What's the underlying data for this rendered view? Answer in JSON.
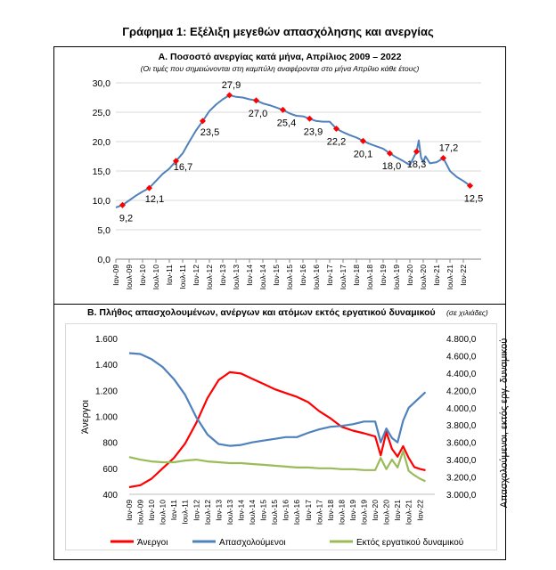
{
  "title": "Γράφημα 1: Εξέλιξη μεγεθών απασχόλησης και ανεργίας",
  "chart_data": [
    {
      "type": "line",
      "title": "Α. Ποσοστό ανεργίας κατά μήνα, Απρίλιος 2009 – 2022",
      "subtitle": "(Οι τιμές που σημειώνονται στη καμπύλη αναφέρονται στο μήνα Απρίλιο κάθε έτους)",
      "ylim": [
        0,
        30
      ],
      "yticks": [
        "0,0",
        "5,0",
        "10,0",
        "15,0",
        "20,0",
        "25,0",
        "30,0"
      ],
      "grid": true,
      "x_labels": [
        "Ιαν-09",
        "Ιουλ-09",
        "Ιαν-10",
        "Ιουλ-10",
        "Ιαν-11",
        "Ιουλ-11",
        "Ιαν-12",
        "Ιουλ-12",
        "Ιαν-13",
        "Ιουλ-13",
        "Ιαν-14",
        "Ιουλ-14",
        "Ιαν-15",
        "Ιουλ-15",
        "Ιαν-16",
        "Ιουλ-16",
        "Ιαν-17",
        "Ιουλ-17",
        "Ιαν-18",
        "Ιουλ-18",
        "Ιαν-19",
        "Ιουλ-19",
        "Ιαν-20",
        "Ιουλ-20",
        "Ιαν-21",
        "Ιουλ-21",
        "Ιαν-22"
      ],
      "series": [
        {
          "name": "",
          "color": "#4f81bd",
          "x": [
            "2009-01",
            "2009-04",
            "2009-07",
            "2009-10",
            "2010-01",
            "2010-04",
            "2010-07",
            "2010-10",
            "2011-01",
            "2011-04",
            "2011-07",
            "2011-10",
            "2012-01",
            "2012-04",
            "2012-07",
            "2012-10",
            "2013-01",
            "2013-04",
            "2013-07",
            "2013-10",
            "2014-01",
            "2014-04",
            "2014-07",
            "2014-10",
            "2015-01",
            "2015-04",
            "2015-07",
            "2015-10",
            "2016-01",
            "2016-04",
            "2016-07",
            "2016-10",
            "2017-01",
            "2017-04",
            "2017-07",
            "2017-10",
            "2018-01",
            "2018-04",
            "2018-07",
            "2018-10",
            "2019-01",
            "2019-04",
            "2019-07",
            "2019-10",
            "2020-01",
            "2020-04",
            "2020-05",
            "2020-06",
            "2020-07",
            "2020-08",
            "2020-10",
            "2021-01",
            "2021-04",
            "2021-07",
            "2021-10",
            "2022-01",
            "2022-04"
          ],
          "values": [
            8.8,
            9.2,
            10.0,
            10.8,
            11.5,
            12.1,
            13.3,
            14.5,
            15.4,
            16.7,
            18.0,
            20.0,
            21.9,
            23.5,
            25.2,
            26.3,
            27.2,
            27.9,
            27.6,
            27.5,
            27.2,
            27.0,
            26.5,
            26.2,
            25.8,
            25.4,
            24.8,
            24.4,
            24.3,
            23.9,
            23.5,
            23.4,
            23.4,
            22.2,
            21.6,
            21.1,
            20.7,
            20.1,
            19.6,
            19.2,
            18.8,
            18.0,
            17.3,
            16.7,
            16.0,
            18.3,
            20.2,
            17.3,
            16.5,
            17.5,
            16.3,
            16.5,
            17.2,
            15.0,
            14.0,
            13.3,
            12.5
          ],
          "labels": [
            {
              "x": "2009-04",
              "y": 9.2,
              "text": "9,2"
            },
            {
              "x": "2010-04",
              "y": 12.1,
              "text": "12,1"
            },
            {
              "x": "2011-04",
              "y": 16.7,
              "text": "16,7"
            },
            {
              "x": "2012-04",
              "y": 23.5,
              "text": "23,5"
            },
            {
              "x": "2013-04",
              "y": 27.9,
              "text": "27,9"
            },
            {
              "x": "2014-04",
              "y": 27.0,
              "text": "27,0"
            },
            {
              "x": "2015-04",
              "y": 25.4,
              "text": "25,4"
            },
            {
              "x": "2016-04",
              "y": 23.9,
              "text": "23,9"
            },
            {
              "x": "2017-04",
              "y": 22.2,
              "text": "22,2"
            },
            {
              "x": "2018-04",
              "y": 20.1,
              "text": "20,1"
            },
            {
              "x": "2019-04",
              "y": 18.0,
              "text": "18,0"
            },
            {
              "x": "2020-04",
              "y": 18.3,
              "text": "18,3"
            },
            {
              "x": "2021-04",
              "y": 17.2,
              "text": "17,2"
            },
            {
              "x": "2022-04",
              "y": 12.5,
              "text": "12,5"
            }
          ]
        }
      ]
    },
    {
      "type": "line",
      "title": "Β. Πλήθος απασχολουμένων, ανέργων και ατόμων εκτός εργατικού δυναμικού",
      "title_note": "(σε χιλιάδες)",
      "ylabel": "Άνεργοι",
      "y2label": "Απασχολούμενοι, εκτός εργ. δυναμικού",
      "ylim": [
        400,
        1600
      ],
      "y2lim": [
        3000,
        4800
      ],
      "yticks": [
        "400",
        "600",
        "800",
        "1.000",
        "1.200",
        "1.400",
        "1.600"
      ],
      "y2ticks": [
        "3.000,0",
        "3.200,0",
        "3.400,0",
        "3.600,0",
        "3.800,0",
        "4.000,0",
        "4.200,0",
        "4.400,0",
        "4.600,0",
        "4.800,0"
      ],
      "grid": false,
      "legend_position": "bottom",
      "x_labels": [
        "Ιαν-09",
        "Ιουλ-09",
        "Ιαν-10",
        "Ιουλ-10",
        "Ιαν-11",
        "Ιουλ-11",
        "Ιαν-12",
        "Ιουλ-12",
        "Ιαν-13",
        "Ιουλ-13",
        "Ιαν-14",
        "Ιουλ-14",
        "Ιαν-15",
        "Ιουλ-15",
        "Ιαν-16",
        "Ιουλ-16",
        "Ιαν-17",
        "Ιουλ-17",
        "Ιαν-18",
        "Ιουλ-18",
        "Ιαν-19",
        "Ιουλ-19",
        "Ιαν-20",
        "Ιουλ-20",
        "Ιαν-21",
        "Ιουλ-21",
        "Ιαν-22"
      ],
      "series": [
        {
          "name": "Άνεργοι",
          "color": "#ff0000",
          "axis": "left",
          "x": [
            "2009-01",
            "2009-07",
            "2010-01",
            "2010-07",
            "2011-01",
            "2011-07",
            "2012-01",
            "2012-07",
            "2013-01",
            "2013-07",
            "2014-01",
            "2014-07",
            "2015-01",
            "2015-07",
            "2016-01",
            "2016-07",
            "2017-01",
            "2017-07",
            "2018-01",
            "2018-07",
            "2019-01",
            "2019-07",
            "2020-01",
            "2020-04",
            "2020-07",
            "2020-10",
            "2021-01",
            "2021-04",
            "2021-07",
            "2021-10",
            "2022-01",
            "2022-04"
          ],
          "values": [
            455,
            470,
            520,
            600,
            680,
            790,
            950,
            1140,
            1280,
            1340,
            1330,
            1290,
            1250,
            1210,
            1180,
            1150,
            1110,
            1040,
            985,
            920,
            890,
            870,
            845,
            700,
            880,
            750,
            690,
            770,
            680,
            610,
            595,
            585
          ]
        },
        {
          "name": "Απασχολούμενοι",
          "color": "#4f81bd",
          "axis": "right",
          "x": [
            "2009-01",
            "2009-07",
            "2010-01",
            "2010-07",
            "2011-01",
            "2011-07",
            "2012-01",
            "2012-07",
            "2013-01",
            "2013-07",
            "2014-01",
            "2014-07",
            "2015-01",
            "2015-07",
            "2016-01",
            "2016-07",
            "2017-01",
            "2017-07",
            "2018-01",
            "2018-07",
            "2019-01",
            "2019-07",
            "2020-01",
            "2020-04",
            "2020-07",
            "2020-10",
            "2021-01",
            "2021-04",
            "2021-07",
            "2021-10",
            "2022-01",
            "2022-04"
          ],
          "values": [
            4630,
            4620,
            4560,
            4470,
            4330,
            4150,
            3890,
            3690,
            3580,
            3560,
            3570,
            3600,
            3620,
            3640,
            3660,
            3660,
            3710,
            3750,
            3780,
            3790,
            3810,
            3840,
            3840,
            3600,
            3760,
            3650,
            3600,
            3850,
            4000,
            4060,
            4120,
            4180
          ]
        },
        {
          "name": "Εκτός εργατικού δυναμικού",
          "color": "#9bbb59",
          "axis": "right",
          "x": [
            "2009-01",
            "2009-07",
            "2010-01",
            "2010-07",
            "2011-01",
            "2011-07",
            "2012-01",
            "2012-07",
            "2013-01",
            "2013-07",
            "2014-01",
            "2014-07",
            "2015-01",
            "2015-07",
            "2016-01",
            "2016-07",
            "2017-01",
            "2017-07",
            "2018-01",
            "2018-07",
            "2019-01",
            "2019-07",
            "2020-01",
            "2020-04",
            "2020-07",
            "2020-10",
            "2021-01",
            "2021-04",
            "2021-07",
            "2021-10",
            "2022-01",
            "2022-04"
          ],
          "values": [
            3430,
            3400,
            3380,
            3370,
            3370,
            3390,
            3400,
            3380,
            3370,
            3360,
            3360,
            3350,
            3340,
            3330,
            3320,
            3310,
            3310,
            3300,
            3300,
            3290,
            3290,
            3280,
            3280,
            3420,
            3290,
            3400,
            3310,
            3500,
            3270,
            3220,
            3180,
            3150
          ]
        }
      ]
    }
  ]
}
